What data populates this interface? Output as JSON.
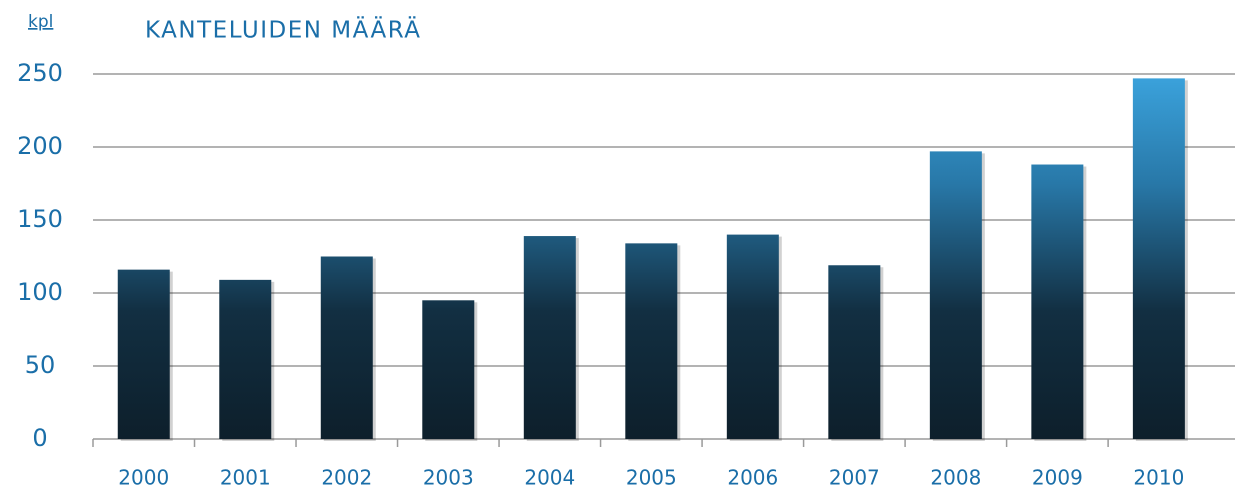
{
  "chart_data": {
    "type": "bar",
    "title": "KANTELUIDEN MÄÄRÄ",
    "y_label": "kpl",
    "categories": [
      "2000",
      "2001",
      "2002",
      "2003",
      "2004",
      "2005",
      "2006",
      "2007",
      "2008",
      "2009",
      "2010"
    ],
    "values": [
      116,
      109,
      125,
      95,
      139,
      134,
      140,
      119,
      197,
      188,
      247
    ],
    "color": "#1a6ea8",
    "ylim": [
      0,
      250
    ],
    "yticks": [
      0,
      50,
      100,
      150,
      200,
      250
    ],
    "grid": true
  }
}
